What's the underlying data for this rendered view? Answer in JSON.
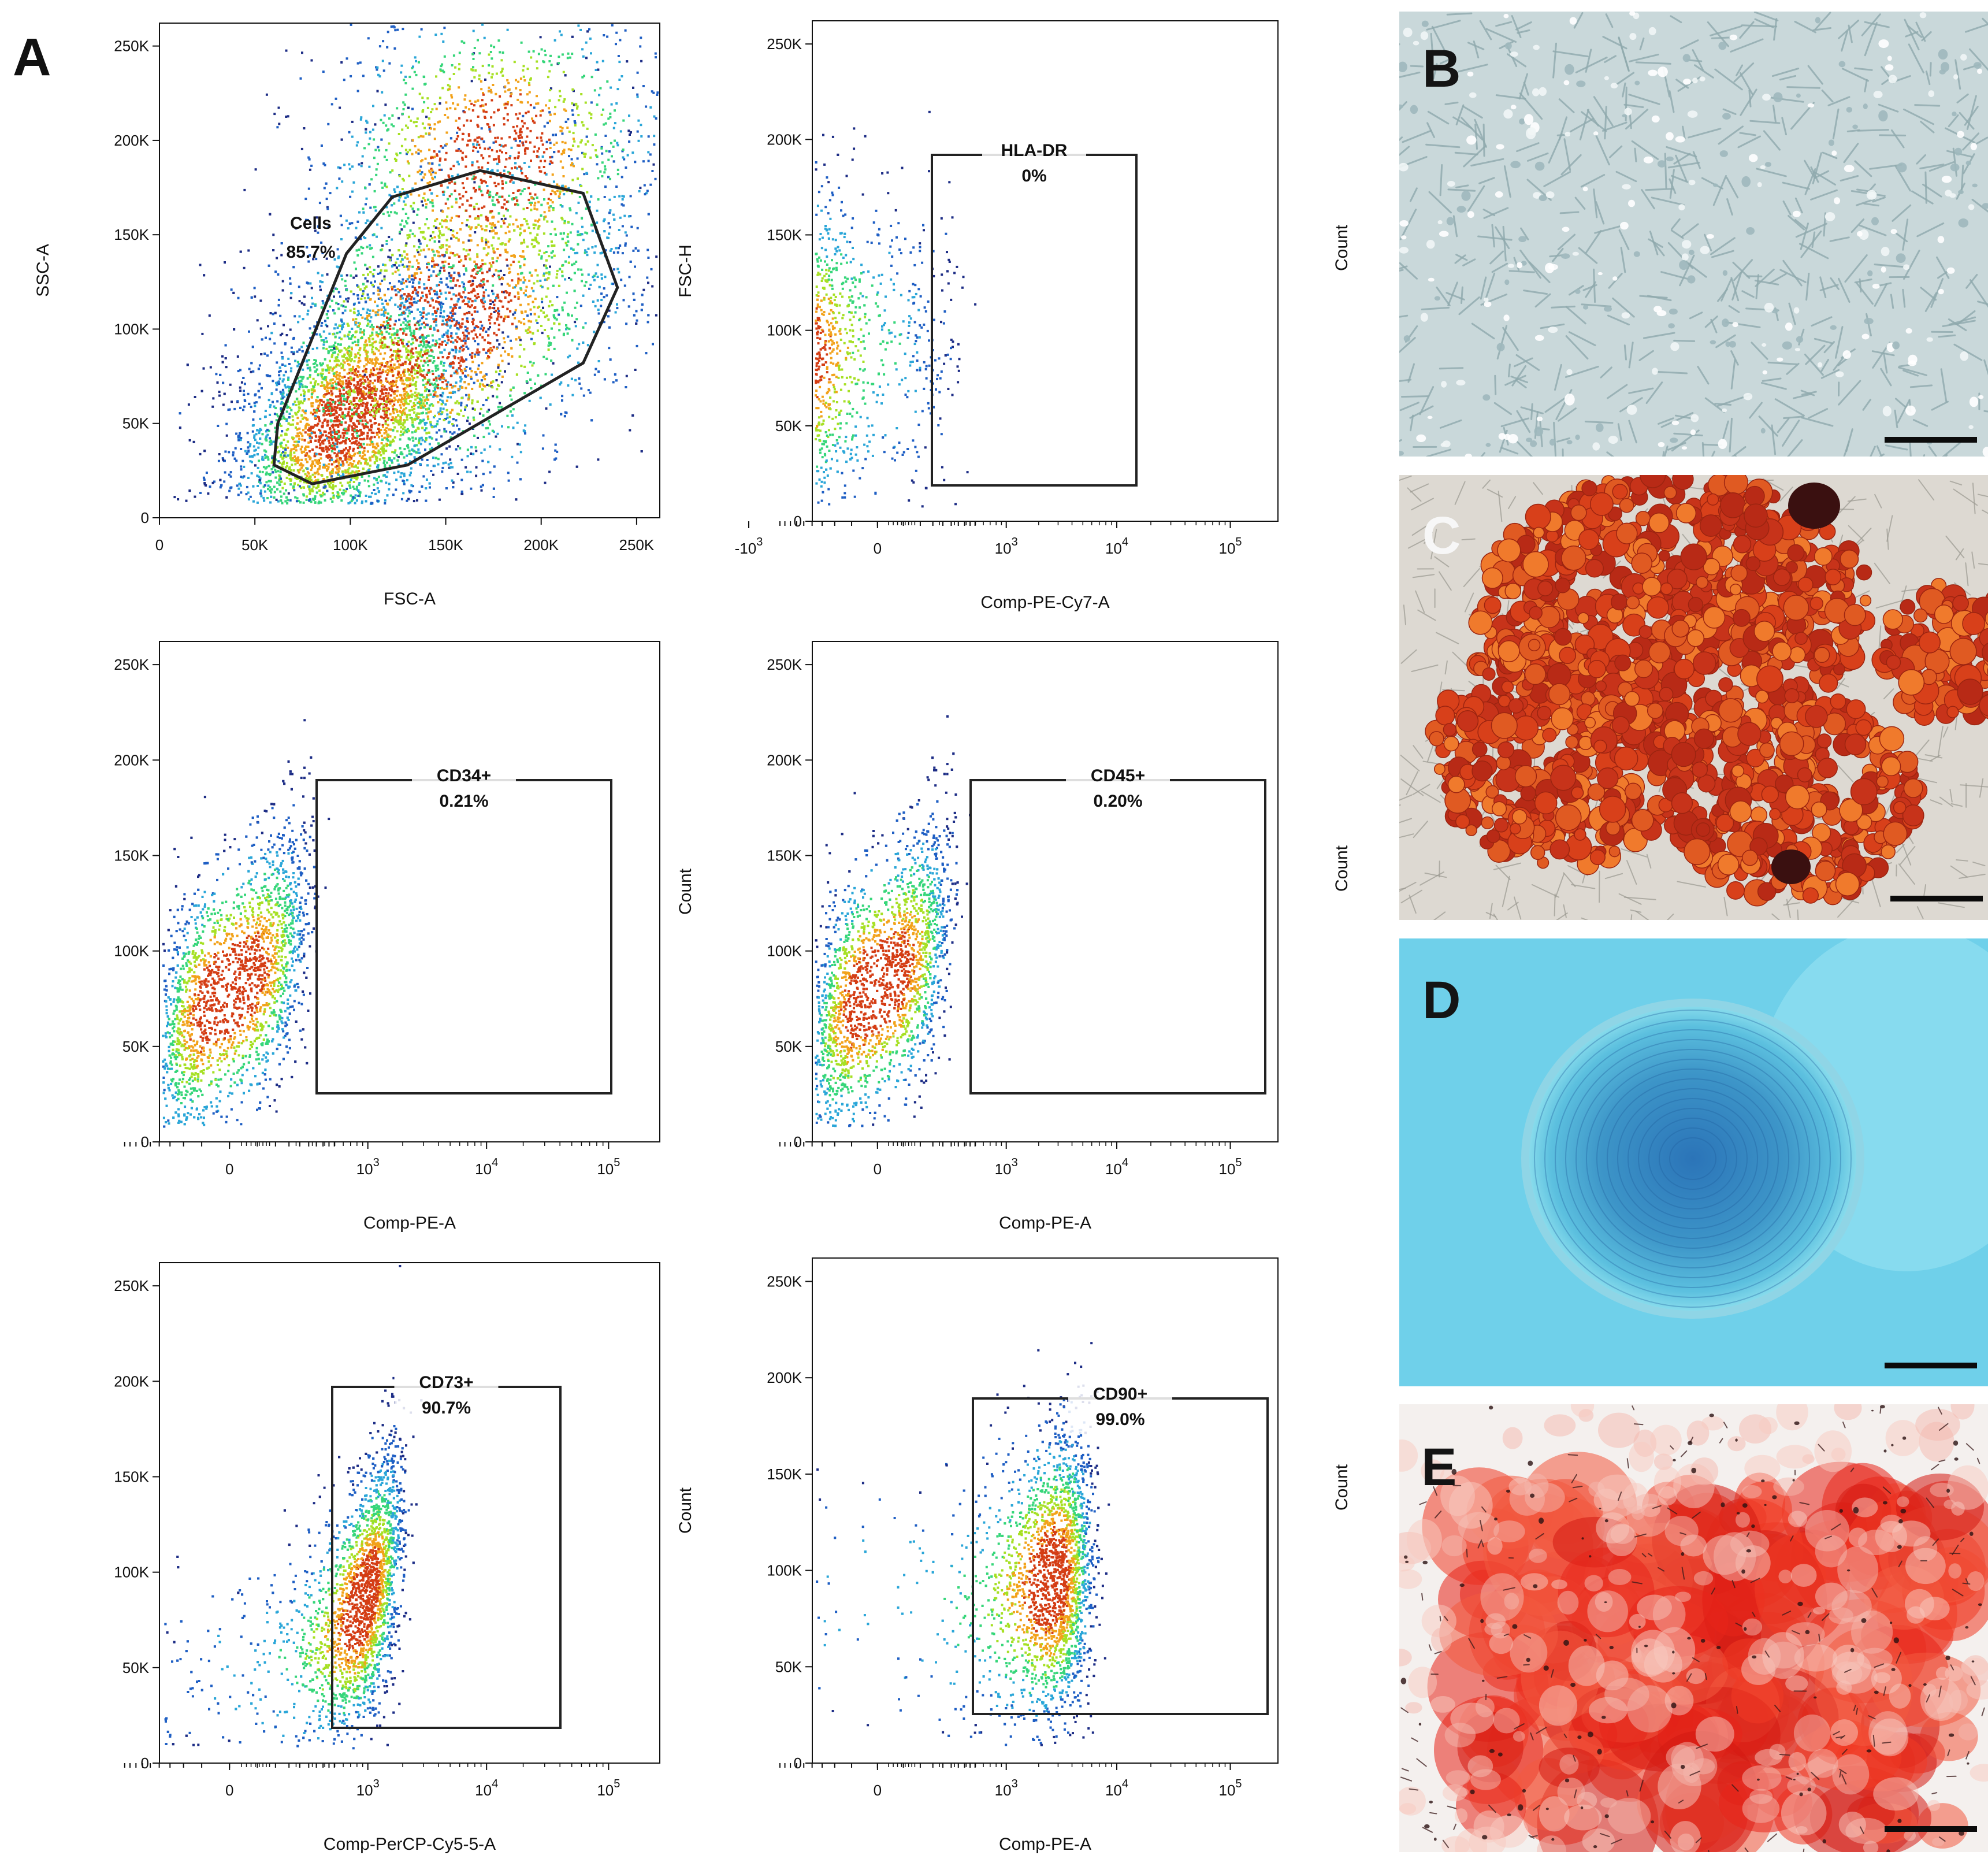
{
  "figure_label": "A",
  "colors": {
    "density": [
      "#1d2d86",
      "#1f5fc4",
      "#2aa6d8",
      "#36d67a",
      "#a6e024",
      "#f2a21a",
      "#d43d14"
    ],
    "gate": "#222222",
    "axis": "#111111"
  },
  "chart_data": [
    {
      "id": "p1",
      "type": "scatter",
      "scale": "linear",
      "xlabel": "FSC-A",
      "ylabel": "SSC-A",
      "xlim": [
        0,
        262144
      ],
      "ylim": [
        0,
        262144
      ],
      "xticks": [
        "0",
        "50K",
        "100K",
        "150K",
        "200K",
        "250K"
      ],
      "yticks": [
        "0",
        "50K",
        "100K",
        "150K",
        "200K",
        "250K"
      ],
      "gate": {
        "shape": "polygon",
        "name": "Cells",
        "pct": "85.7%",
        "vertices": [
          [
            60000,
            28000
          ],
          [
            80000,
            18000
          ],
          [
            130000,
            28000
          ],
          [
            222000,
            82000
          ],
          [
            240000,
            122000
          ],
          [
            222000,
            172000
          ],
          [
            168000,
            184000
          ],
          [
            122000,
            170000
          ],
          [
            98000,
            140000
          ],
          [
            62000,
            50000
          ]
        ]
      },
      "populations": [
        {
          "cx": 100000,
          "cy": 55000,
          "sx": 32000,
          "sy": 35000,
          "rho": 0.5,
          "n": 3800
        },
        {
          "cx": 150000,
          "cy": 105000,
          "sx": 50000,
          "sy": 50000,
          "rho": 0.35,
          "n": 3200
        },
        {
          "cx": 175000,
          "cy": 190000,
          "sx": 45000,
          "sy": 45000,
          "rho": 0.1,
          "n": 1400
        }
      ]
    },
    {
      "id": "p2",
      "type": "scatter",
      "scale": "logicle",
      "xlabel": "Comp-PE-Cy7-A",
      "ylabel": "FSC-H",
      "side_label": "Count",
      "ylim": [
        0,
        262144
      ],
      "xticks": [
        "-10^3",
        "0",
        "10^3",
        "10^4",
        "10^5"
      ],
      "yticks": [
        "0",
        "50K",
        "100K",
        "150K",
        "200K",
        "250K"
      ],
      "gate": {
        "shape": "rect",
        "name": "HLA-DR",
        "pct": "0%"
      },
      "populations": [
        {
          "cx": -300,
          "cy": 85000,
          "sx": 220,
          "sy": 42000,
          "rho": 0.1,
          "n": 2600
        }
      ]
    },
    {
      "id": "p3",
      "type": "scatter",
      "scale": "logicle",
      "xlabel": "Comp-PE-A",
      "ylabel": "",
      "xticks": [
        "0",
        "10^3",
        "10^4",
        "10^5"
      ],
      "yticks": [
        "0",
        "50K",
        "100K",
        "150K",
        "200K",
        "250K"
      ],
      "gate": {
        "shape": "rect",
        "name": "CD34+",
        "pct": "0.21%"
      },
      "populations": [
        {
          "cx": 0,
          "cy": 80000,
          "sx": 120,
          "sy": 40000,
          "rho": 0.55,
          "n": 3600
        }
      ]
    },
    {
      "id": "p4",
      "type": "scatter",
      "scale": "logicle",
      "xlabel": "Comp-PE-A",
      "ylabel": "Count",
      "side_label": "Count",
      "xticks": [
        "0",
        "10^3",
        "10^4",
        "10^5"
      ],
      "yticks": [
        "0",
        "50K",
        "100K",
        "150K",
        "200K",
        "250K"
      ],
      "gate": {
        "shape": "rect",
        "name": "CD45+",
        "pct": "0.20%"
      },
      "populations": [
        {
          "cx": 0,
          "cy": 82000,
          "sx": 120,
          "sy": 40000,
          "rho": 0.55,
          "n": 3600
        }
      ]
    },
    {
      "id": "p5",
      "type": "scatter",
      "scale": "logicle",
      "xlabel": "Comp-PerCP-Cy5-5-A",
      "ylabel": "",
      "xticks": [
        "0",
        "10^3",
        "10^4",
        "10^5"
      ],
      "yticks": [
        "0",
        "50K",
        "100K",
        "150K",
        "200K",
        "250K"
      ],
      "gate": {
        "shape": "rect",
        "name": "CD73+",
        "pct": "90.7%"
      },
      "populations": [
        {
          "cx": 900,
          "cy": 85000,
          "sx": 500,
          "sy": 38000,
          "rho": 0.55,
          "n": 3800
        }
      ]
    },
    {
      "id": "p6",
      "type": "scatter",
      "scale": "logicle",
      "xlabel": "Comp-PE-A",
      "ylabel": "Count",
      "side_label": "Count",
      "xticks": [
        "0",
        "10^3",
        "10^4",
        "10^5"
      ],
      "yticks": [
        "0",
        "50K",
        "100K",
        "150K",
        "200K",
        "250K"
      ],
      "gate": {
        "shape": "rect",
        "name": "CD90+",
        "pct": "99.0%"
      },
      "populations": [
        {
          "cx": 2600,
          "cy": 95000,
          "sx": 1600,
          "sy": 38000,
          "rho": 0.2,
          "n": 3200
        }
      ]
    }
  ],
  "micrographs": [
    {
      "label": "B",
      "stain": "brightfield"
    },
    {
      "label": "C",
      "stain": "oil-red-o"
    },
    {
      "label": "D",
      "stain": "alcian-blue"
    },
    {
      "label": "E",
      "stain": "alizarin-red"
    }
  ]
}
